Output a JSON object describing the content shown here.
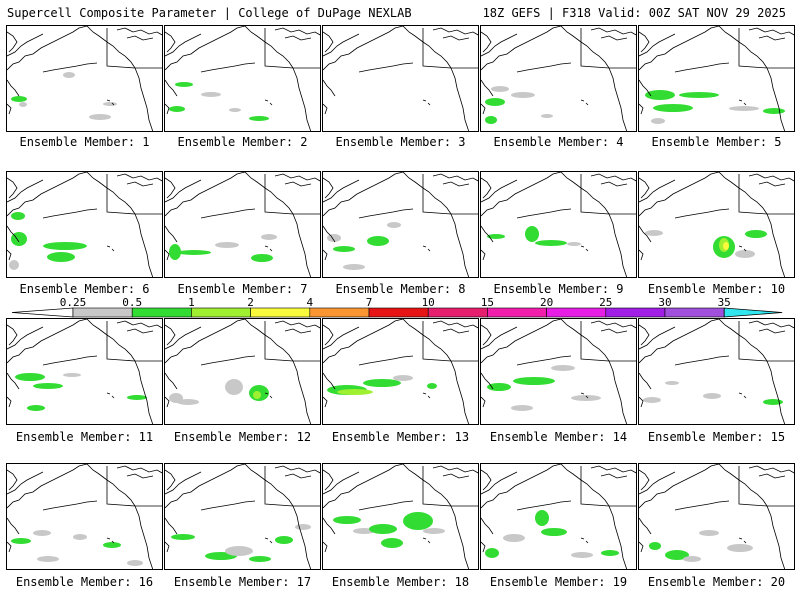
{
  "header": {
    "left": "Supercell Composite Parameter | College of DuPage NEXLAB",
    "right": "18Z GEFS | F318 Valid: 00Z SAT NOV 29 2025"
  },
  "panels": [
    {
      "label": "Ensemble Member: 1"
    },
    {
      "label": "Ensemble Member: 2"
    },
    {
      "label": "Ensemble Member: 3"
    },
    {
      "label": "Ensemble Member: 4"
    },
    {
      "label": "Ensemble Member: 5"
    },
    {
      "label": "Ensemble Member: 6"
    },
    {
      "label": "Ensemble Member: 7"
    },
    {
      "label": "Ensemble Member: 8"
    },
    {
      "label": "Ensemble Member: 9"
    },
    {
      "label": "Ensemble Member: 10"
    },
    {
      "label": "Ensemble Member: 11"
    },
    {
      "label": "Ensemble Member: 12"
    },
    {
      "label": "Ensemble Member: 13"
    },
    {
      "label": "Ensemble Member: 14"
    },
    {
      "label": "Ensemble Member: 15"
    },
    {
      "label": "Ensemble Member: 16"
    },
    {
      "label": "Ensemble Member: 17"
    },
    {
      "label": "Ensemble Member: 18"
    },
    {
      "label": "Ensemble Member: 19"
    },
    {
      "label": "Ensemble Member: 20"
    }
  ],
  "colorbar": {
    "ticks": [
      "0.25",
      "0.5",
      "1",
      "2",
      "4",
      "7",
      "10",
      "15",
      "20",
      "25",
      "30",
      "35"
    ],
    "colors": [
      "#c8c8c8",
      "#32dc32",
      "#a0f032",
      "#fafa3c",
      "#fa9632",
      "#e61414",
      "#e61e6e",
      "#f01eaa",
      "#e61ee6",
      "#a01ee6",
      "#a050dc",
      "#32e6f0"
    ]
  }
}
